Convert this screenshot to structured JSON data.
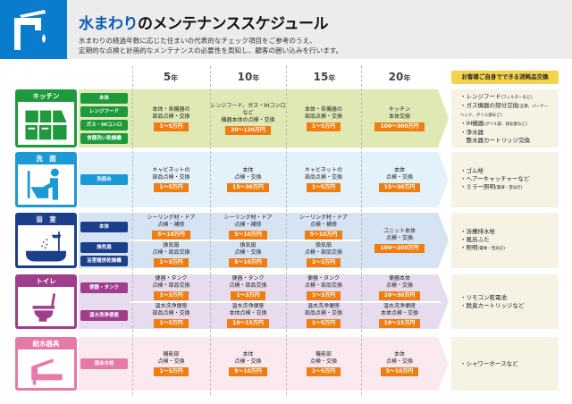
{
  "header": {
    "title_highlight": "水まわり",
    "title_rest": "のメンテナンススケジュール",
    "subtitle_line1": "水まわりの経過年数に応じた住まいの代表的なチェック項目をご参考のうえ、",
    "subtitle_line2": "定期的な点検と計画的なメンテナンスの必要性を周知し、顧客の囲い込みを行います。"
  },
  "years": [
    "5",
    "10",
    "15",
    "20"
  ],
  "year_unit": "年",
  "consumables_header": "お客様ご自身でできる消耗品交換",
  "rows": [
    {
      "category": "キッチン",
      "icon": "kitchen-icon",
      "color": "#1e9a3c",
      "band": "#dfe9b4",
      "items": [
        "本体",
        "レンジフード",
        "ガス・IHコンロ",
        "食器洗い乾燥機"
      ],
      "subrows": [
        {
          "cells": [
            {
              "lines": [
                "本体・各機器の",
                "部品点検・交換"
              ],
              "cost": "1〜5万円"
            },
            {
              "lines": [
                "レンジフード、ガス・IHコンロなど",
                "機器本体の点検・交換"
              ],
              "cost": "20〜120万円"
            },
            {
              "lines": [
                "本体・各機器の",
                "部品点検・交換"
              ],
              "cost": "1〜5万円"
            },
            {
              "lines": [
                "キッチン",
                "本体交換"
              ],
              "cost": "100〜300万円"
            }
          ]
        }
      ],
      "consumables": [
        {
          "main": "・レンジフード",
          "note": "(フィルターなど)"
        },
        {
          "main": "・ガス機器の部分交換",
          "note": "(五徳、バーナーヘッド、グリル部など)"
        },
        {
          "main": "・IH機器",
          "note": "(グリル部、排気部など)"
        },
        {
          "main": "・浄水器",
          "note": ""
        },
        {
          "main": "　整水器カートリッジ交換",
          "note": ""
        }
      ]
    },
    {
      "category": "洗　面",
      "icon": "washbasin-icon",
      "color": "#1a9ad6",
      "band": "#e3f1fb",
      "items": [
        "洗面台"
      ],
      "subrows": [
        {
          "cells": [
            {
              "lines": [
                "キャビネットの",
                "部品点検・交換"
              ],
              "cost": "1〜5万円"
            },
            {
              "lines": [
                "本体",
                "点検・交換"
              ],
              "cost": "15〜30万円"
            },
            {
              "lines": [
                "キャビネットの",
                "部品点検・交換"
              ],
              "cost": "1〜5万円"
            },
            {
              "lines": [
                "本体",
                "点検・交換"
              ],
              "cost": "15〜30万円"
            }
          ]
        }
      ],
      "consumables": [
        {
          "main": "・ゴム栓",
          "note": ""
        },
        {
          "main": "・ヘアーキャッチャーなど",
          "note": ""
        },
        {
          "main": "・ミラー照明",
          "note": "(電球・蛍光灯)"
        }
      ]
    },
    {
      "category": "浴　室",
      "icon": "bathtub-icon",
      "color": "#1c3f8c",
      "band": "#d5e3f3",
      "items": [
        "本体",
        "換気扇",
        "浴室暖房乾燥機"
      ],
      "subrows": [
        {
          "cells": [
            {
              "lines": [
                "シーリング材・ドア",
                "点検・補修"
              ],
              "cost": "5〜10万円"
            },
            {
              "lines": [
                "シーリング材・ドア",
                "点検・補修"
              ],
              "cost": "5〜10万円"
            },
            {
              "lines": [
                "シーリング材・ドア",
                "点検・補修"
              ],
              "cost": "5〜10万円"
            }
          ]
        },
        {
          "cells": [
            {
              "lines": [
                "換気扇",
                "点検・部品交換"
              ],
              "cost": "1〜3万円"
            },
            {
              "lines": [
                "換気扇",
                "点検・交換"
              ],
              "cost": "5〜10万円"
            },
            {
              "lines": [
                "換気扇",
                "点検・部品交換"
              ],
              "cost": "1〜3万円"
            }
          ]
        }
      ],
      "span20": {
        "lines": [
          "ユニット本体",
          "点検・交換"
        ],
        "cost": "100〜200万円"
      },
      "consumables": [
        {
          "main": "・浴槽排水栓",
          "note": ""
        },
        {
          "main": "・風呂ふた",
          "note": ""
        },
        {
          "main": "・照明",
          "note": "(電球・蛍光灯)"
        }
      ]
    },
    {
      "category": "トイレ",
      "icon": "toilet-icon",
      "color": "#a03d8c",
      "band": "#e6dcee",
      "items": [
        "便器・タンク",
        "温水洗浄便座"
      ],
      "subrows": [
        {
          "cells": [
            {
              "lines": [
                "便器・タンク",
                "点検・部品交換"
              ],
              "cost": "1〜3万円"
            },
            {
              "lines": [
                "便器・タンク",
                "点検・部品交換"
              ],
              "cost": "1〜3万円"
            },
            {
              "lines": [
                "便器・タンク",
                "点検・部品交換"
              ],
              "cost": "1〜3万円"
            },
            {
              "lines": [
                "便器本体",
                "点検・交換"
              ],
              "cost": "20〜30万円"
            }
          ]
        },
        {
          "cells": [
            {
              "lines": [
                "温水洗浄便座",
                "部品点検・交換"
              ],
              "cost": "1〜5万円"
            },
            {
              "lines": [
                "温水洗浄便座",
                "本体点検・交換"
              ],
              "cost": "10〜15万円"
            },
            {
              "lines": [
                "温水洗浄便座",
                "部品点検・交換"
              ],
              "cost": "1〜5万円"
            },
            {
              "lines": [
                "温水洗浄便座",
                "本体点検・交換"
              ],
              "cost": "10〜15万円"
            }
          ]
        }
      ],
      "consumables": [
        {
          "main": "・リモコン乾電池",
          "note": ""
        },
        {
          "main": "・脱臭カートリッジなど",
          "note": ""
        }
      ]
    },
    {
      "category": "給水器具",
      "icon": "faucet-icon",
      "color": "#e57aa8",
      "band": "#fbe9f0",
      "items": [
        "混合水栓"
      ],
      "subrows": [
        {
          "cells": [
            {
              "lines": [
                "機能部",
                "点検・交換"
              ],
              "cost": "1〜5万円"
            },
            {
              "lines": [
                "本体",
                "点検・交換"
              ],
              "cost": "5〜10万円"
            },
            {
              "lines": [
                "機能部",
                "点検・交換"
              ],
              "cost": "1〜5万円"
            },
            {
              "lines": [
                "本体",
                "点検・交換"
              ],
              "cost": "5〜10万円"
            }
          ]
        }
      ],
      "consumables": [
        {
          "main": "・シャワーホースなど",
          "note": ""
        }
      ]
    }
  ]
}
